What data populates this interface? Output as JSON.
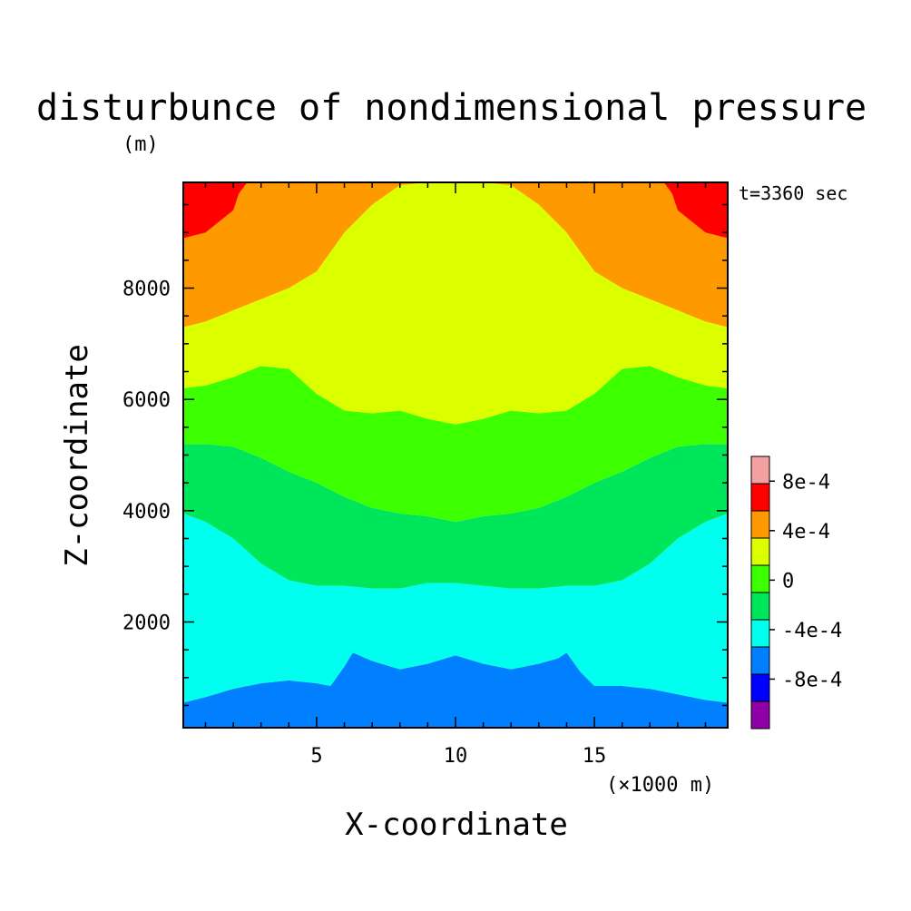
{
  "chart_data": {
    "type": "heatmap",
    "title": "disturbunce of nondimensional pressure",
    "title_unit": "(m)",
    "time_label": "t=3360 sec",
    "xlabel": "X-coordinate",
    "x_unit": "(×1000 m)",
    "ylabel": "Z-coordinate",
    "xlim": [
      0.2,
      19.8
    ],
    "ylim": [
      100,
      9900
    ],
    "x_ticks": [
      5,
      10,
      15
    ],
    "y_ticks": [
      2000,
      4000,
      6000,
      8000
    ],
    "grid": false,
    "colorbar": {
      "placement": "right",
      "levels": [
        -0.0012,
        -0.0008,
        -0.0006,
        -0.0004,
        -0.0002,
        0,
        0.0002,
        0.0004,
        0.0006,
        0.0008,
        0.001
      ],
      "colors": [
        "#8f00a6",
        "#0000ff",
        "#0080ff",
        "#00ffee",
        "#00e65a",
        "#3cff00",
        "#dcff00",
        "#ff9900",
        "#ff0000",
        "#f5a0a0"
      ],
      "tick_labels": [
        {
          "value": 0.0008,
          "label": "8e-4"
        },
        {
          "value": 0.0004,
          "label": "4e-4"
        },
        {
          "value": 0,
          "label": "0"
        },
        {
          "value": -0.0004,
          "label": "-4e-4"
        },
        {
          "value": -0.0008,
          "label": "-8e-4"
        }
      ]
    },
    "contour_boundaries": [
      {
        "between": [
          "#0080ff",
          "#00ffee"
        ],
        "x": [
          0.2,
          1,
          2,
          3,
          4,
          5,
          5.5,
          6,
          6.3,
          7,
          8,
          9,
          10,
          11,
          12,
          13,
          13.7,
          14,
          14.5,
          15,
          16,
          17,
          18,
          19,
          19.8
        ],
        "z": [
          550,
          650,
          800,
          900,
          950,
          900,
          850,
          1200,
          1450,
          1300,
          1150,
          1250,
          1400,
          1250,
          1150,
          1250,
          1350,
          1450,
          1100,
          850,
          850,
          800,
          700,
          600,
          550
        ]
      },
      {
        "between": [
          "#00ffee",
          "#00e65a"
        ],
        "x": [
          0.2,
          1,
          2,
          3,
          4,
          5,
          6,
          7,
          8,
          9,
          10,
          11,
          12,
          13,
          14,
          15,
          16,
          17,
          18,
          19,
          19.8
        ],
        "z": [
          3950,
          3800,
          3500,
          3050,
          2750,
          2650,
          2650,
          2600,
          2600,
          2700,
          2700,
          2650,
          2600,
          2600,
          2650,
          2650,
          2750,
          3050,
          3500,
          3800,
          3950
        ]
      },
      {
        "between": [
          "#00e65a",
          "#3cff00"
        ],
        "x": [
          0.2,
          1,
          2,
          3,
          4,
          5,
          6,
          7,
          8,
          9,
          10,
          11,
          12,
          13,
          14,
          15,
          16,
          17,
          18,
          19,
          19.8
        ],
        "z": [
          5200,
          5200,
          5150,
          4950,
          4700,
          4500,
          4250,
          4050,
          3950,
          3900,
          3800,
          3900,
          3950,
          4050,
          4250,
          4500,
          4700,
          4950,
          5150,
          5200,
          5200
        ]
      },
      {
        "between": [
          "#3cff00",
          "#dcff00"
        ],
        "x": [
          0.2,
          1,
          2,
          3,
          4,
          5,
          6,
          7,
          8,
          9,
          10,
          11,
          12,
          13,
          14,
          15,
          16,
          17,
          18,
          19,
          19.8
        ],
        "z": [
          6200,
          6250,
          6400,
          6600,
          6550,
          6100,
          5800,
          5750,
          5800,
          5650,
          5550,
          5650,
          5800,
          5750,
          5800,
          6100,
          6550,
          6600,
          6400,
          6250,
          6200
        ]
      },
      {
        "between": [
          "#dcff00",
          "#ff9900"
        ],
        "x": [
          0.2,
          1,
          2,
          3,
          4,
          5,
          6,
          7,
          8,
          9,
          10,
          11,
          12,
          13,
          14,
          15,
          16,
          17,
          18,
          19,
          19.8
        ],
        "z": [
          7300,
          7400,
          7600,
          7800,
          8000,
          8300,
          9000,
          9500,
          9850,
          9900,
          9900,
          9900,
          9850,
          9500,
          9000,
          8300,
          8000,
          7800,
          7600,
          7400,
          7300
        ]
      },
      {
        "between": [
          "#ff9900",
          "#ff0000"
        ],
        "x": [
          0.2,
          1,
          2,
          2.2,
          2.5
        ],
        "z": [
          8900,
          9000,
          9400,
          9700,
          9900
        ]
      },
      {
        "between": [
          "#ff9900",
          "#ff0000"
        ],
        "x": [
          17.5,
          17.8,
          18,
          19,
          19.8
        ],
        "z": [
          9900,
          9700,
          9400,
          9000,
          8900
        ]
      }
    ]
  }
}
